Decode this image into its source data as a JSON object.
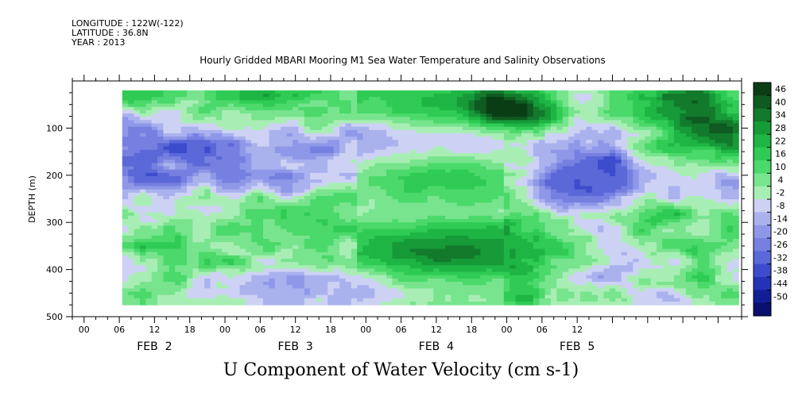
{
  "header": {
    "longitude": "LONGITUDE : 122W(-122)",
    "latitude": "LATITUDE : 36.8N",
    "year": "YEAR : 2013"
  },
  "chart_data": {
    "type": "heatmap",
    "title": "Hourly Gridded MBARI Mooring M1 Sea Water Temperature and Salinity Observations",
    "xlabel": "U Component of Water Velocity (cm s-1)",
    "ylabel": "DEPTH (m)",
    "ylim": [
      500,
      0
    ],
    "y_ticks": [
      100,
      200,
      300,
      400,
      500
    ],
    "x_hour_ticks": [
      "00",
      "06",
      "12",
      "18",
      "00",
      "06",
      "12",
      "18",
      "00",
      "06",
      "12",
      "18",
      "00",
      "06",
      "12"
    ],
    "x_date_labels": [
      "FEB  2",
      "FEB  3",
      "FEB  4",
      "FEB  5"
    ],
    "colorbar_levels": [
      46,
      40,
      34,
      28,
      22,
      16,
      10,
      4,
      -2,
      -8,
      -14,
      -20,
      -26,
      -32,
      -38,
      -44,
      -50
    ],
    "colorbar_colors": [
      "#0b3d14",
      "#0f5a20",
      "#137a2c",
      "#179a38",
      "#1fb545",
      "#2fcb55",
      "#4ad96a",
      "#78e48e",
      "#a8eeb4",
      "#cdd2f4",
      "#aab2ee",
      "#8f98e8",
      "#7680e0",
      "#5a68d8",
      "#3d4ccc",
      "#2432b8",
      "#121e96",
      "#0a0f6e"
    ],
    "data_extent_hours": [
      6.5,
      111
    ],
    "data_extent_depth": [
      20,
      475
    ],
    "fields": [
      {
        "t": 10,
        "d": 30,
        "v": 25,
        "r": 10
      },
      {
        "t": 30,
        "d": 25,
        "v": 20,
        "r": 11
      },
      {
        "t": 12,
        "d": 150,
        "v": -25,
        "r": 22
      },
      {
        "t": 40,
        "d": 180,
        "v": -22,
        "r": 18
      },
      {
        "t": 14,
        "d": 320,
        "v": 10,
        "r": 14
      },
      {
        "t": 24,
        "d": 250,
        "v": 8,
        "r": 12
      },
      {
        "t": 28,
        "d": 380,
        "v": 12,
        "r": 15
      },
      {
        "t": 38,
        "d": 290,
        "v": 10,
        "r": 14
      },
      {
        "t": 33,
        "d": 400,
        "v": -20,
        "r": 14
      },
      {
        "t": 44,
        "d": 430,
        "v": -8,
        "r": 10
      },
      {
        "t": 55,
        "d": 80,
        "v": 18,
        "r": 30
      },
      {
        "t": 65,
        "d": 170,
        "v": -14,
        "r": 26
      },
      {
        "t": 58,
        "d": 240,
        "v": 8,
        "r": 22
      },
      {
        "t": 60,
        "d": 320,
        "v": 10,
        "r": 22
      },
      {
        "t": 65,
        "d": 400,
        "v": 14,
        "r": 26
      },
      {
        "t": 73,
        "d": 60,
        "v": 46,
        "r": 8
      },
      {
        "t": 76,
        "d": 300,
        "v": 10,
        "r": 10
      },
      {
        "t": 83,
        "d": 250,
        "v": -25,
        "r": 10
      },
      {
        "t": 90,
        "d": 200,
        "v": -32,
        "r": 12
      },
      {
        "t": 92,
        "d": 380,
        "v": -20,
        "r": 10
      },
      {
        "t": 98,
        "d": 280,
        "v": 16,
        "r": 13
      },
      {
        "t": 105,
        "d": 80,
        "v": 40,
        "r": 14
      },
      {
        "t": 104,
        "d": 380,
        "v": 10,
        "r": 12
      },
      {
        "t": 108,
        "d": 220,
        "v": -14,
        "r": 8
      },
      {
        "t": 86,
        "d": 70,
        "v": -10,
        "r": 12
      }
    ]
  }
}
